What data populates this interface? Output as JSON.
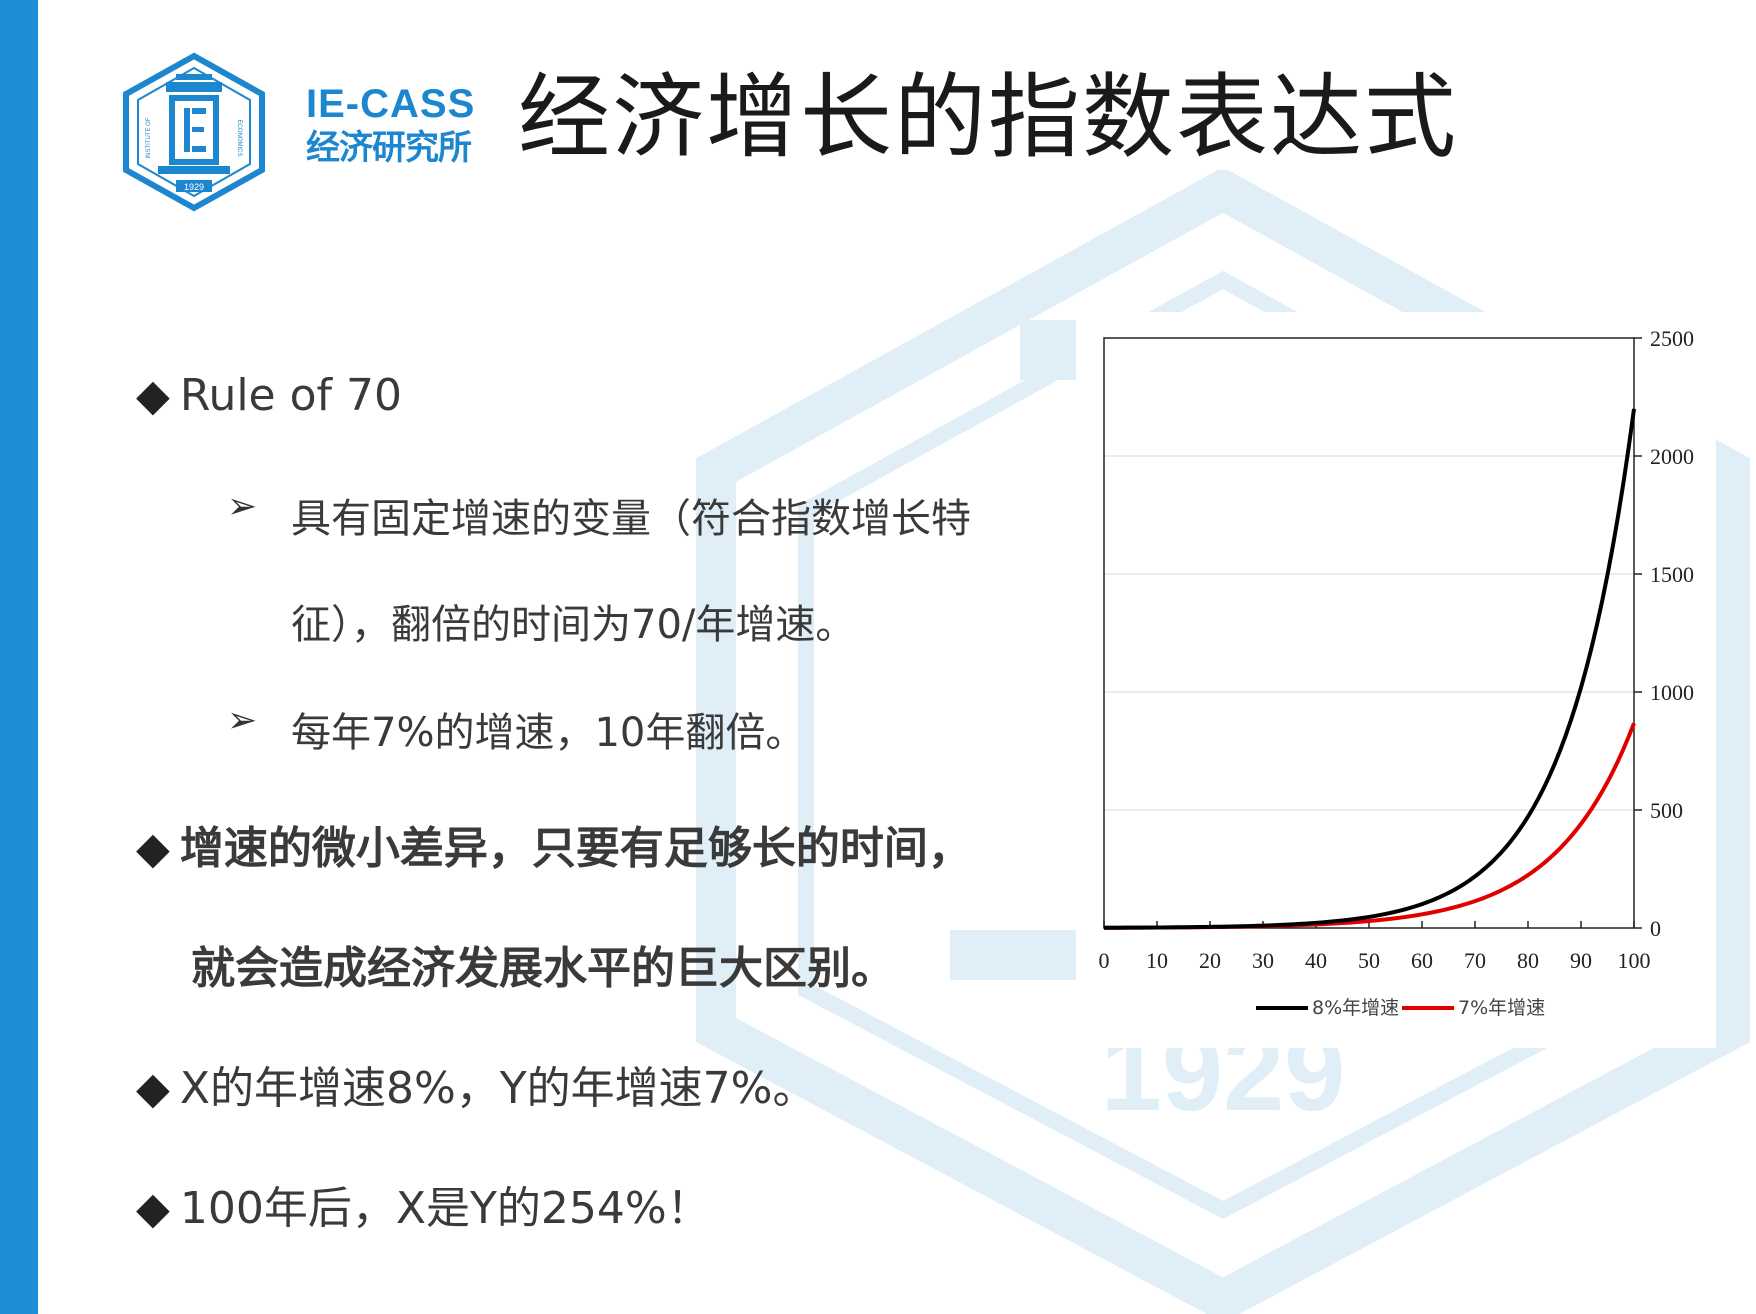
{
  "header": {
    "brand_en": "IE-CASS",
    "brand_cn": "经济研究所",
    "title": "经济增长的指数表达式",
    "logo_texts": [
      "INSTITUTE OF",
      "ECONOMICS",
      "1929"
    ]
  },
  "content": {
    "bullet_mark": "◆",
    "sub_arrow": "➢",
    "items": [
      {
        "text": "Rule of 70"
      },
      {
        "text": "具有固定增速的变量（符合指数增长特"
      },
      {
        "text": "征），翻倍的时间为70/年增速。"
      },
      {
        "text": "每年7%的增速，10年翻倍。"
      },
      {
        "text": "增速的微小差异，只要有足够长的时间，"
      },
      {
        "text": "就会造成经济发展水平的巨大区别。"
      },
      {
        "text": "X的年增速8%，Y的年增速7%。"
      },
      {
        "text": "100年后，X是Y的254%！"
      }
    ]
  },
  "watermark_text": "1929",
  "colors": {
    "accent_bar": "#1e8fd6",
    "brand": "#1c86cf",
    "series_8": "#000000",
    "series_7": "#e00000"
  },
  "chart_data": {
    "type": "line",
    "x": [
      0,
      5,
      10,
      15,
      20,
      25,
      30,
      35,
      40,
      45,
      50,
      55,
      60,
      65,
      70,
      75,
      80,
      85,
      90,
      95,
      100
    ],
    "series": [
      {
        "name": "8%年增速",
        "growth": 0.08,
        "values": [
          1,
          1.47,
          2.16,
          3.17,
          4.66,
          6.85,
          10.06,
          14.79,
          21.72,
          31.92,
          46.9,
          68.91,
          101.26,
          148.78,
          218.61,
          321.2,
          471.95,
          693.46,
          1018.92,
          1497.12,
          2199.76
        ]
      },
      {
        "name": "7%年增速",
        "growth": 0.07,
        "values": [
          1,
          1.4,
          1.97,
          2.76,
          3.87,
          5.43,
          7.61,
          10.68,
          14.97,
          21.0,
          29.46,
          41.32,
          57.95,
          81.27,
          113.99,
          159.88,
          224.23,
          314.5,
          441.1,
          618.67,
          867.72
        ]
      }
    ],
    "xlim": [
      0,
      100
    ],
    "ylim": [
      0,
      2500
    ],
    "x_ticks": [
      "0",
      "10",
      "20",
      "30",
      "40",
      "50",
      "60",
      "70",
      "80",
      "90",
      "100"
    ],
    "y_ticks": [
      "0",
      "500",
      "1000",
      "1500",
      "2000",
      "2500"
    ],
    "legend_position": "bottom",
    "grid": true
  }
}
